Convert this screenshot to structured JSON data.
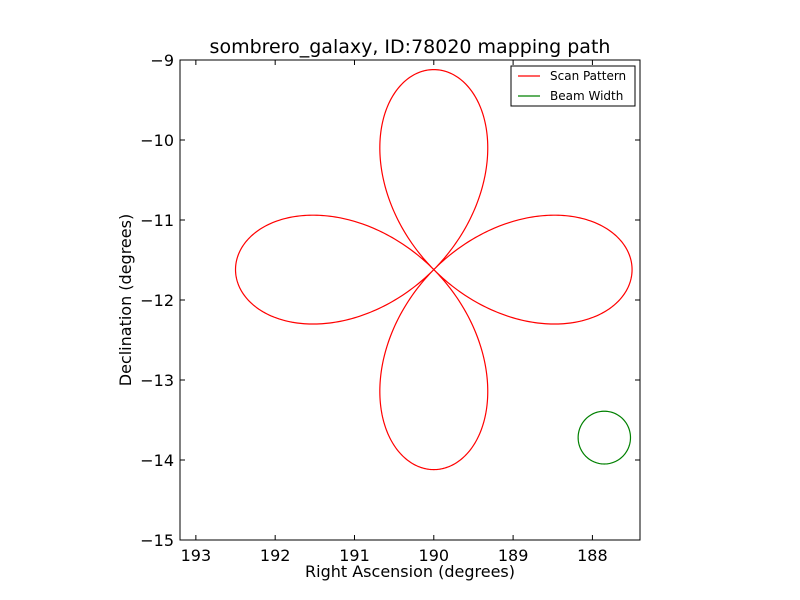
{
  "chart_data": {
    "type": "line",
    "title": "sombrero_galaxy, ID:78020 mapping path",
    "xlabel": "Right Ascension (degrees)",
    "ylabel": "Declination (degrees)",
    "xlim": [
      193.2,
      187.4
    ],
    "ylim": [
      -15,
      -9
    ],
    "x_reversed": true,
    "xticks": [
      193,
      192,
      191,
      190,
      189,
      188
    ],
    "yticks": [
      -9,
      -10,
      -11,
      -12,
      -13,
      -14,
      -15
    ],
    "xtick_labels": [
      "193",
      "192",
      "191",
      "190",
      "189",
      "188"
    ],
    "ytick_labels": [
      "−9",
      "−10",
      "−11",
      "−12",
      "−13",
      "−14",
      "−15"
    ],
    "grid": false,
    "legend_position": "top-right",
    "series": [
      {
        "name": "Scan Pattern",
        "kind": "four-petal rose",
        "color": "#ff0000",
        "center_ra": 190.0,
        "center_dec": -11.62,
        "petal_radius_deg": 2.5
      },
      {
        "name": "Beam Width",
        "kind": "circle",
        "color": "#008000",
        "center_ra": 187.85,
        "center_dec": -13.72,
        "radius_deg": 0.33
      }
    ]
  }
}
